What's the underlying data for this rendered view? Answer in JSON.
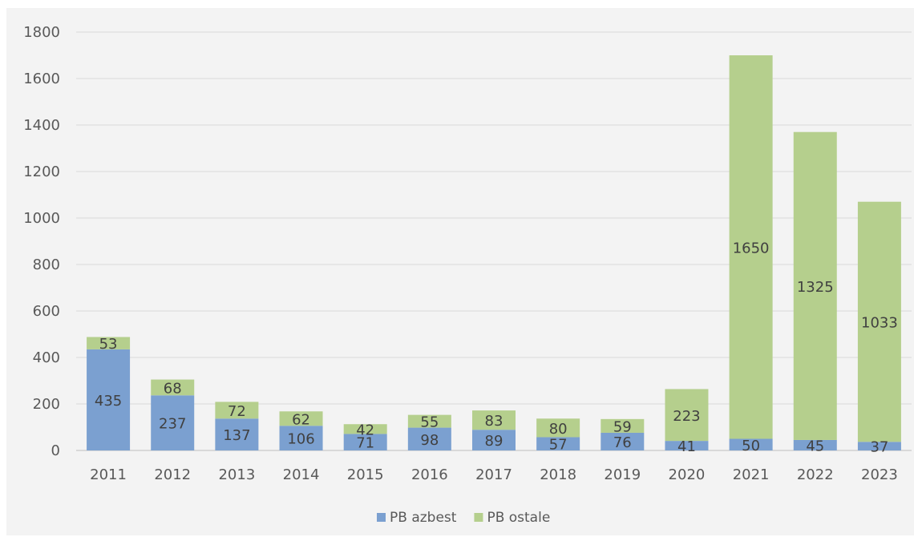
{
  "chart_data": {
    "type": "bar",
    "stacked": true,
    "categories": [
      "2011",
      "2012",
      "2013",
      "2014",
      "2015",
      "2016",
      "2017",
      "2018",
      "2019",
      "2020",
      "2021",
      "2022",
      "2023"
    ],
    "series": [
      {
        "name": "PB azbest",
        "color": "#7ba0d0",
        "values": [
          435,
          237,
          137,
          106,
          71,
          98,
          89,
          57,
          76,
          41,
          50,
          45,
          37
        ]
      },
      {
        "name": "PB ostale",
        "color": "#b5cf8d",
        "values": [
          53,
          68,
          72,
          62,
          42,
          55,
          83,
          80,
          59,
          223,
          1650,
          1325,
          1033
        ]
      }
    ],
    "ylim": [
      0,
      1800
    ],
    "yticks": [
      0,
      200,
      400,
      600,
      800,
      1000,
      1200,
      1400,
      1600,
      1800
    ],
    "grid": true,
    "legend_position": "bottom"
  }
}
